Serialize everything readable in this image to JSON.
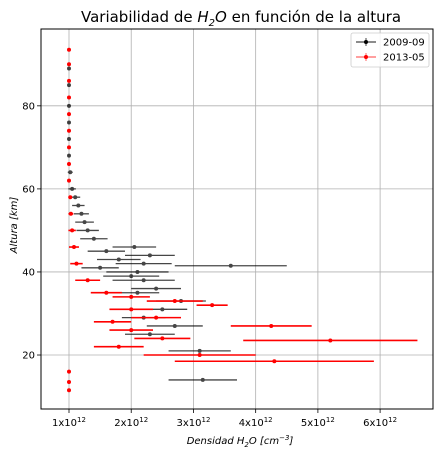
{
  "chart_data": {
    "type": "scatter",
    "title_parts": {
      "pre": "Variabilidad de ",
      "h": "H",
      "sub": "2",
      "o": "O",
      "post": " en función de la altura"
    },
    "xlabel_parts": {
      "pre": "Densidad ",
      "h": "H",
      "sub": "2",
      "o": "O",
      "post": " [cm",
      "sup": "−3",
      "end": "]"
    },
    "ylabel": "Altura [km]",
    "xlim": [
      550000000000.0,
      6850000000000.0
    ],
    "ylim": [
      7,
      98.5
    ],
    "grid": true,
    "legend_position": "top-right",
    "x_ticks": [
      {
        "value": 1000000000000.0,
        "base": "1x10",
        "exp": "12"
      },
      {
        "value": 2000000000000.0,
        "base": "2x10",
        "exp": "12"
      },
      {
        "value": 3000000000000.0,
        "base": "3x10",
        "exp": "12"
      },
      {
        "value": 4000000000000.0,
        "base": "4x10",
        "exp": "12"
      },
      {
        "value": 5000000000000.0,
        "base": "5x10",
        "exp": "12"
      },
      {
        "value": 6000000000000.0,
        "base": "6x10",
        "exp": "12"
      }
    ],
    "y_ticks": [
      {
        "value": 20,
        "label": "20"
      },
      {
        "value": 40,
        "label": "40"
      },
      {
        "value": 60,
        "label": "60"
      },
      {
        "value": 80,
        "label": "80"
      }
    ],
    "series": [
      {
        "name": "2009-09",
        "color": "#000000",
        "points": [
          {
            "y": 89,
            "x": 1000000000000.0,
            "err": 0.0
          },
          {
            "y": 85,
            "x": 1000000000000.0,
            "err": 0.0
          },
          {
            "y": 80,
            "x": 1000000000000.0,
            "err": 0.0
          },
          {
            "y": 76,
            "x": 1000000000000.0,
            "err": 0.0
          },
          {
            "y": 72,
            "x": 1000000000000.0,
            "err": 0.0
          },
          {
            "y": 68,
            "x": 1000000000000.0,
            "err": 20000000000.0
          },
          {
            "y": 64,
            "x": 1020000000000.0,
            "err": 40000000000.0
          },
          {
            "y": 60,
            "x": 1050000000000.0,
            "err": 60000000000.0
          },
          {
            "y": 58,
            "x": 1100000000000.0,
            "err": 80000000000.0
          },
          {
            "y": 56,
            "x": 1150000000000.0,
            "err": 100000000000.0
          },
          {
            "y": 54,
            "x": 1200000000000.0,
            "err": 120000000000.0
          },
          {
            "y": 52,
            "x": 1250000000000.0,
            "err": 150000000000.0
          },
          {
            "y": 50,
            "x": 1300000000000.0,
            "err": 180000000000.0
          },
          {
            "y": 48,
            "x": 1400000000000.0,
            "err": 220000000000.0
          },
          {
            "y": 46,
            "x": 2050000000000.0,
            "err": 350000000000.0
          },
          {
            "y": 45,
            "x": 1600000000000.0,
            "err": 300000000000.0
          },
          {
            "y": 44,
            "x": 2300000000000.0,
            "err": 400000000000.0
          },
          {
            "y": 43,
            "x": 1800000000000.0,
            "err": 350000000000.0
          },
          {
            "y": 42,
            "x": 2200000000000.0,
            "err": 450000000000.0
          },
          {
            "y": 41.5,
            "x": 3600000000000.0,
            "err": 900000000000.0
          },
          {
            "y": 41,
            "x": 1500000000000.0,
            "err": 300000000000.0
          },
          {
            "y": 40,
            "x": 2100000000000.0,
            "err": 500000000000.0
          },
          {
            "y": 39,
            "x": 2000000000000.0,
            "err": 450000000000.0
          },
          {
            "y": 38,
            "x": 2200000000000.0,
            "err": 500000000000.0
          },
          {
            "y": 36,
            "x": 2400000000000.0,
            "err": 400000000000.0
          },
          {
            "y": 35,
            "x": 2100000000000.0,
            "err": 350000000000.0
          },
          {
            "y": 33,
            "x": 2800000000000.0,
            "err": 400000000000.0
          },
          {
            "y": 31,
            "x": 2500000000000.0,
            "err": 400000000000.0
          },
          {
            "y": 29,
            "x": 2200000000000.0,
            "err": 350000000000.0
          },
          {
            "y": 27,
            "x": 2700000000000.0,
            "err": 450000000000.0
          },
          {
            "y": 25,
            "x": 2300000000000.0,
            "err": 400000000000.0
          },
          {
            "y": 21,
            "x": 3100000000000.0,
            "err": 500000000000.0
          },
          {
            "y": 14,
            "x": 3150000000000.0,
            "err": 550000000000.0
          }
        ]
      },
      {
        "name": "2013-05",
        "color": "#ff0000",
        "points": [
          {
            "y": 93.5,
            "x": 1000000000000.0,
            "err": 0.0
          },
          {
            "y": 90,
            "x": 1000000000000.0,
            "err": 0.0
          },
          {
            "y": 86,
            "x": 1000000000000.0,
            "err": 0.0
          },
          {
            "y": 82,
            "x": 1000000000000.0,
            "err": 0.0
          },
          {
            "y": 78,
            "x": 1000000000000.0,
            "err": 0.0
          },
          {
            "y": 74,
            "x": 1000000000000.0,
            "err": 0.0
          },
          {
            "y": 70,
            "x": 1000000000000.0,
            "err": 0.0
          },
          {
            "y": 66,
            "x": 1000000000000.0,
            "err": 10000000000.0
          },
          {
            "y": 62,
            "x": 1000000000000.0,
            "err": 20000000000.0
          },
          {
            "y": 58,
            "x": 1020000000000.0,
            "err": 30000000000.0
          },
          {
            "y": 54,
            "x": 1030000000000.0,
            "err": 40000000000.0
          },
          {
            "y": 50,
            "x": 1050000000000.0,
            "err": 60000000000.0
          },
          {
            "y": 46,
            "x": 1080000000000.0,
            "err": 80000000000.0
          },
          {
            "y": 42,
            "x": 1120000000000.0,
            "err": 100000000000.0
          },
          {
            "y": 38,
            "x": 1300000000000.0,
            "err": 200000000000.0
          },
          {
            "y": 35,
            "x": 1600000000000.0,
            "err": 250000000000.0
          },
          {
            "y": 34,
            "x": 2000000000000.0,
            "err": 300000000000.0
          },
          {
            "y": 33,
            "x": 2700000000000.0,
            "err": 450000000000.0
          },
          {
            "y": 32,
            "x": 3300000000000.0,
            "err": 250000000000.0
          },
          {
            "y": 31,
            "x": 2000000000000.0,
            "err": 350000000000.0
          },
          {
            "y": 29,
            "x": 2400000000000.0,
            "err": 400000000000.0
          },
          {
            "y": 28,
            "x": 1700000000000.0,
            "err": 300000000000.0
          },
          {
            "y": 27,
            "x": 4250000000000.0,
            "err": 650000000000.0
          },
          {
            "y": 26,
            "x": 2000000000000.0,
            "err": 350000000000.0
          },
          {
            "y": 24,
            "x": 2500000000000.0,
            "err": 450000000000.0
          },
          {
            "y": 23.5,
            "x": 5200000000000.0,
            "err": 1400000000000.0
          },
          {
            "y": 22,
            "x": 1800000000000.0,
            "err": 400000000000.0
          },
          {
            "y": 20,
            "x": 3100000000000.0,
            "err": 900000000000.0
          },
          {
            "y": 18.5,
            "x": 4300000000000.0,
            "err": 1600000000000.0
          },
          {
            "y": 16,
            "x": 1000000000000.0,
            "err": 0.0
          },
          {
            "y": 13.5,
            "x": 1000000000000.0,
            "err": 0.0
          },
          {
            "y": 11.5,
            "x": 1000000000000.0,
            "err": 0.0
          }
        ]
      }
    ]
  }
}
